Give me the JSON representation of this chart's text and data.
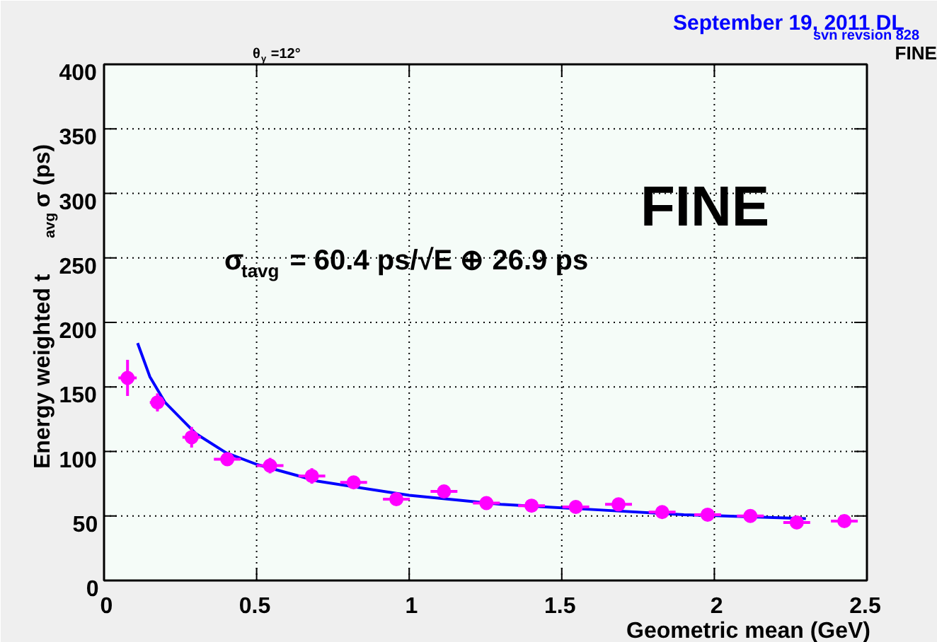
{
  "chart_data": {
    "type": "scatter",
    "xlabel": "Geometric mean (GeV)",
    "ylabel": "Energy weighted t$_{avg}$ σ (ps)",
    "xlim": [
      0,
      2.5
    ],
    "ylim": [
      0,
      400
    ],
    "xticks": [
      0,
      0.5,
      1,
      1.5,
      2,
      2.5
    ],
    "yticks": [
      0,
      50,
      100,
      150,
      200,
      250,
      300,
      350,
      400
    ],
    "grid": true,
    "marker": "circle",
    "annotations": [
      "θ$_{γ}$=12°",
      "September 19, 2011 DL",
      "svn revsion 828",
      "FINE",
      "FINE",
      "σ$_{tavg}$ = 60.4 ps/√E ⊕ 26.9 ps"
    ],
    "series": [
      {
        "color": "#ff00ff",
        "x": [
          0.077,
          0.175,
          0.287,
          0.404,
          0.544,
          0.681,
          0.818,
          0.958,
          1.114,
          1.253,
          1.401,
          1.546,
          1.686,
          1.829,
          1.978,
          2.118,
          2.27,
          2.426
        ],
        "values": [
          157,
          138,
          111,
          94,
          89,
          81,
          76,
          63,
          69,
          60,
          58,
          57,
          59,
          53,
          51,
          50,
          45,
          46
        ],
        "errors": [
          14,
          7,
          8,
          4,
          6,
          6,
          3,
          4,
          2,
          2,
          2,
          2,
          2,
          2,
          2,
          2,
          2,
          2
        ],
        "xerrors": [
          0.03,
          0.025,
          0.03,
          0.044,
          0.044,
          0.044,
          0.044,
          0.044,
          0.044,
          0.044,
          0.044,
          0.044,
          0.044,
          0.044,
          0.044,
          0.044,
          0.044,
          0.044
        ]
      },
      {
        "type": "line",
        "marker": "none",
        "color": "#0000ff",
        "x": [
          0.11,
          0.15,
          0.2,
          0.3,
          0.4,
          0.5,
          0.7,
          1.0,
          1.3,
          1.6,
          1.9,
          2.3
        ],
        "values": [
          184,
          158,
          138,
          114,
          99,
          90,
          77,
          66,
          59,
          55,
          51,
          48
        ]
      }
    ]
  }
}
